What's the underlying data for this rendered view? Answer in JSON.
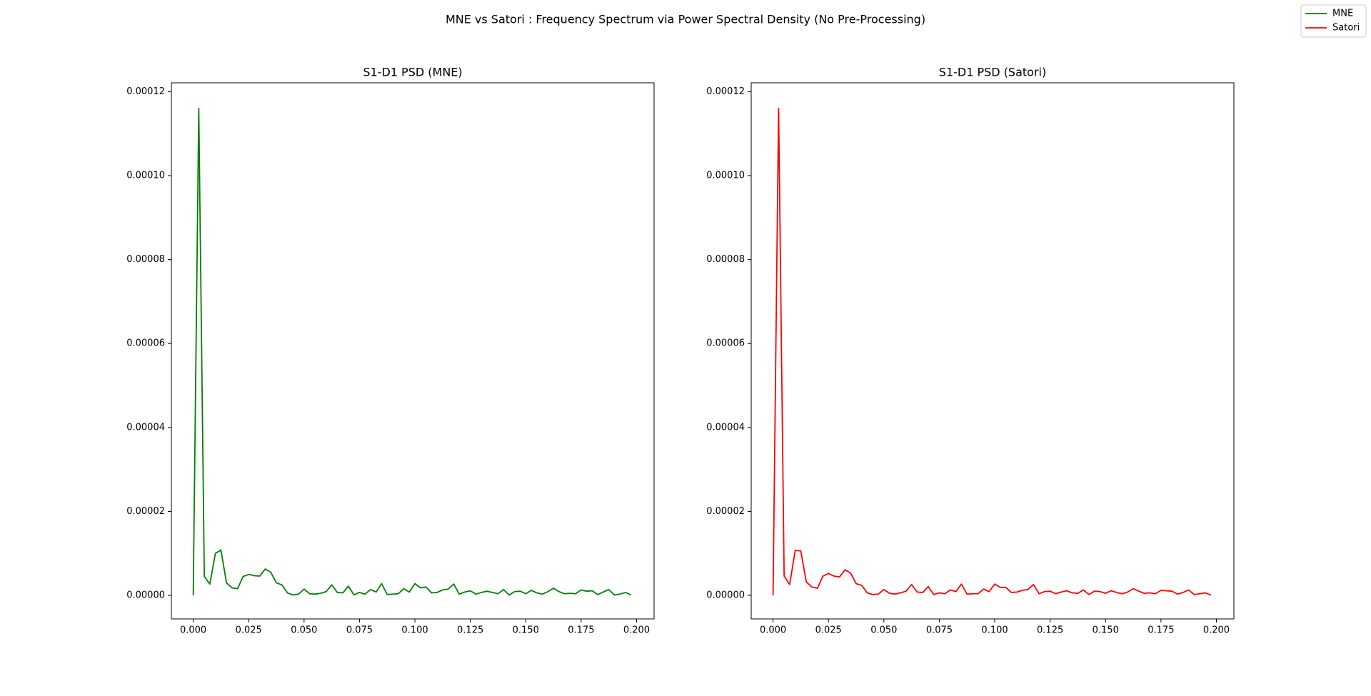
{
  "title": "MNE vs Satori : Frequency Spectrum via Power Spectral Density (No Pre-Processing)",
  "chart_data": [
    {
      "type": "line",
      "title": "S1-D1 PSD (MNE)",
      "x": [
        0,
        0.0025,
        0.005,
        0.0075,
        0.01,
        0.0125,
        0.015,
        0.0175,
        0.02,
        0.0225,
        0.025,
        0.0275,
        0.03,
        0.0325,
        0.035,
        0.0375,
        0.04,
        0.0425,
        0.045,
        0.0475,
        0.05,
        0.0525,
        0.055,
        0.0575,
        0.06,
        0.0625,
        0.065,
        0.0675,
        0.07,
        0.0725,
        0.075,
        0.0775,
        0.08,
        0.0825,
        0.085,
        0.0875,
        0.09,
        0.0925,
        0.095,
        0.0975,
        0.1,
        0.1025,
        0.105,
        0.1075,
        0.11,
        0.1125,
        0.115,
        0.1175,
        0.12,
        0.1225,
        0.125,
        0.1275,
        0.13,
        0.1325,
        0.135,
        0.1375,
        0.14,
        0.1425,
        0.145,
        0.1475,
        0.15,
        0.1525,
        0.155,
        0.1575,
        0.16,
        0.1625,
        0.165,
        0.1675,
        0.17,
        0.1725,
        0.175,
        0.1775,
        0.18,
        0.1825,
        0.185,
        0.1875,
        0.19,
        0.1925,
        0.195,
        0.1975
      ],
      "series": [
        {
          "name": "MNE",
          "color": "#008000",
          "values": [
            0,
            0.000116,
            4.5e-06,
            2.7e-06,
            1e-05,
            1.08e-05,
            3e-06,
            1.8e-06,
            1.6e-06,
            4.5e-06,
            5e-06,
            4.7e-06,
            4.6e-06,
            6.3e-06,
            5.5e-06,
            3e-06,
            2.5e-06,
            6e-07,
            1e-07,
            3e-07,
            1.5e-06,
            4e-07,
            3e-07,
            5e-07,
            9e-07,
            2.5e-06,
            7e-07,
            6e-07,
            2.2e-06,
            1e-07,
            7e-07,
            3e-07,
            1.4e-06,
            8e-07,
            2.8e-06,
            2e-07,
            3e-07,
            4e-07,
            1.6e-06,
            8e-07,
            2.8e-06,
            1.8e-06,
            2e-06,
            6e-07,
            7e-07,
            1.3e-06,
            1.5e-06,
            2.7e-06,
            3e-07,
            8e-07,
            1.1e-06,
            3e-07,
            7e-07,
            1e-06,
            7e-07,
            4e-07,
            1.4e-06,
            1e-07,
            9e-07,
            1e-06,
            4e-07,
            1.2e-06,
            6e-07,
            3e-07,
            9e-07,
            1.7e-06,
            9e-07,
            4e-07,
            5e-07,
            4e-07,
            1.3e-06,
            1e-06,
            1.1e-06,
            2e-07,
            8e-07,
            1.4e-06,
            1e-07,
            3e-07,
            7e-07,
            1e-07
          ]
        }
      ],
      "xlim": [
        -0.00986,
        0.2079
      ],
      "ylim": [
        -5.6e-06,
        0.0001221
      ],
      "xticks": [
        {
          "value": 0,
          "label": "0.000"
        },
        {
          "value": 0.025,
          "label": "0.025"
        },
        {
          "value": 0.05,
          "label": "0.050"
        },
        {
          "value": 0.075,
          "label": "0.075"
        },
        {
          "value": 0.1,
          "label": "0.100"
        },
        {
          "value": 0.125,
          "label": "0.125"
        },
        {
          "value": 0.15,
          "label": "0.150"
        },
        {
          "value": 0.175,
          "label": "0.175"
        },
        {
          "value": 0.2,
          "label": "0.200"
        }
      ],
      "yticks": [
        {
          "value": 0,
          "label": "0.00000"
        },
        {
          "value": 2e-05,
          "label": "0.00002"
        },
        {
          "value": 4e-05,
          "label": "0.00004"
        },
        {
          "value": 6e-05,
          "label": "0.00006"
        },
        {
          "value": 8e-05,
          "label": "0.00008"
        },
        {
          "value": 0.0001,
          "label": "0.00010"
        },
        {
          "value": 0.00012,
          "label": "0.00012"
        }
      ]
    },
    {
      "type": "line",
      "title": "S1-D1 PSD (Satori)",
      "x": [
        0,
        0.0025,
        0.005,
        0.0075,
        0.01,
        0.0125,
        0.015,
        0.0175,
        0.02,
        0.0225,
        0.025,
        0.0275,
        0.03,
        0.0325,
        0.035,
        0.0375,
        0.04,
        0.0425,
        0.045,
        0.0475,
        0.05,
        0.0525,
        0.055,
        0.0575,
        0.06,
        0.0625,
        0.065,
        0.0675,
        0.07,
        0.0725,
        0.075,
        0.0775,
        0.08,
        0.0825,
        0.085,
        0.0875,
        0.09,
        0.0925,
        0.095,
        0.0975,
        0.1,
        0.1025,
        0.105,
        0.1075,
        0.11,
        0.1125,
        0.115,
        0.1175,
        0.12,
        0.1225,
        0.125,
        0.1275,
        0.13,
        0.1325,
        0.135,
        0.1375,
        0.14,
        0.1425,
        0.145,
        0.1475,
        0.15,
        0.1525,
        0.155,
        0.1575,
        0.16,
        0.1625,
        0.165,
        0.1675,
        0.17,
        0.1725,
        0.175,
        0.1775,
        0.18,
        0.1825,
        0.185,
        0.1875,
        0.19,
        0.1925,
        0.195,
        0.1975
      ],
      "series": [
        {
          "name": "Satori",
          "color": "#ff0000",
          "values": [
            0,
            0.000116,
            4.6e-06,
            2.6e-06,
            1.07e-05,
            1.06e-05,
            3.2e-06,
            2e-06,
            1.7e-06,
            4.6e-06,
            5.2e-06,
            4.6e-06,
            4.4e-06,
            6.1e-06,
            5.3e-06,
            2.8e-06,
            2.4e-06,
            6e-07,
            2e-07,
            3e-07,
            1.4e-06,
            5e-07,
            3e-07,
            6e-07,
            1e-06,
            2.6e-06,
            8e-07,
            7e-07,
            2.1e-06,
            2e-07,
            6e-07,
            4e-07,
            1.3e-06,
            9e-07,
            2.7e-06,
            3e-07,
            4e-07,
            4e-07,
            1.5e-06,
            9e-07,
            2.7e-06,
            1.9e-06,
            1.9e-06,
            7e-07,
            8e-07,
            1.2e-06,
            1.4e-06,
            2.6e-06,
            4e-07,
            9e-07,
            1e-06,
            4e-07,
            8e-07,
            1.1e-06,
            6e-07,
            5e-07,
            1.3e-06,
            2e-07,
            1e-06,
            9e-07,
            5e-07,
            1.1e-06,
            7e-07,
            4e-07,
            8e-07,
            1.6e-06,
            1e-06,
            5e-07,
            6e-07,
            4e-07,
            1.2e-06,
            1.1e-06,
            1e-06,
            3e-07,
            7e-07,
            1.3e-06,
            2e-07,
            4e-07,
            6e-07,
            1e-07
          ]
        }
      ],
      "xlim": [
        -0.00986,
        0.2079
      ],
      "ylim": [
        -5.6e-06,
        0.0001221
      ],
      "xticks": [
        {
          "value": 0,
          "label": "0.000"
        },
        {
          "value": 0.025,
          "label": "0.025"
        },
        {
          "value": 0.05,
          "label": "0.050"
        },
        {
          "value": 0.075,
          "label": "0.075"
        },
        {
          "value": 0.1,
          "label": "0.100"
        },
        {
          "value": 0.125,
          "label": "0.125"
        },
        {
          "value": 0.15,
          "label": "0.150"
        },
        {
          "value": 0.175,
          "label": "0.175"
        },
        {
          "value": 0.2,
          "label": "0.200"
        }
      ],
      "yticks": [
        {
          "value": 0,
          "label": "0.00000"
        },
        {
          "value": 2e-05,
          "label": "0.00002"
        },
        {
          "value": 4e-05,
          "label": "0.00004"
        },
        {
          "value": 6e-05,
          "label": "0.00006"
        },
        {
          "value": 8e-05,
          "label": "0.00008"
        },
        {
          "value": 0.0001,
          "label": "0.00010"
        },
        {
          "value": 0.00012,
          "label": "0.00012"
        }
      ]
    }
  ]
}
